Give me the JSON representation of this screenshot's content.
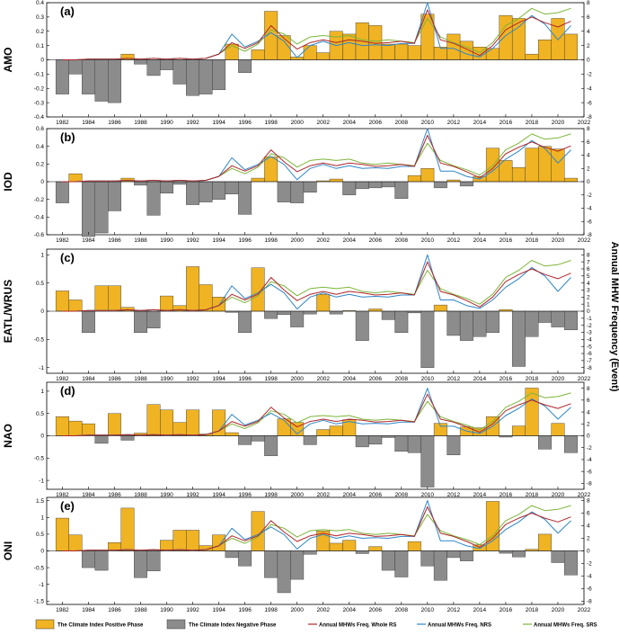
{
  "right_axis_label": "Annual MHW Frequency (Event)",
  "legend": [
    {
      "label": "The Climate Index Positive Phase",
      "kind": "bar",
      "color": "#F0B323"
    },
    {
      "label": "The Climate Index Negative Phase",
      "kind": "bar",
      "color": "#8C8C8C"
    },
    {
      "label": "Annual MHWs Freq. Whole RS",
      "kind": "line",
      "color": "#B0262B"
    },
    {
      "label": "Annual MHWs Freq. NRS",
      "kind": "line",
      "color": "#2E86C8"
    },
    {
      "label": "Annual MHWs Freq. SRS",
      "kind": "line",
      "color": "#7DB53A"
    }
  ],
  "colors": {
    "positive": "#F0B323",
    "negative": "#8C8C8C",
    "whole": "#B0262B",
    "nrs": "#2E86C8",
    "srs": "#7DB53A"
  },
  "chart_data": [
    {
      "type": "bar",
      "panel_label": "(a)",
      "ylabel": "AMO",
      "x": [
        1982,
        1983,
        1984,
        1985,
        1986,
        1987,
        1988,
        1989,
        1990,
        1991,
        1992,
        1993,
        1994,
        1995,
        1996,
        1997,
        1998,
        1999,
        2000,
        2001,
        2002,
        2003,
        2004,
        2005,
        2006,
        2007,
        2008,
        2009,
        2010,
        2011,
        2012,
        2013,
        2014,
        2015,
        2016,
        2017,
        2018,
        2019,
        2020,
        2021
      ],
      "values": [
        -0.24,
        -0.1,
        -0.24,
        -0.29,
        -0.3,
        0.04,
        -0.03,
        -0.11,
        -0.07,
        -0.17,
        -0.25,
        -0.24,
        -0.21,
        0.11,
        -0.09,
        0.07,
        0.34,
        0.17,
        0.02,
        0.1,
        0.05,
        0.2,
        0.18,
        0.26,
        0.24,
        0.11,
        0.11,
        0.1,
        0.32,
        0.09,
        0.18,
        0.13,
        0.09,
        0.08,
        0.31,
        0.29,
        0.04,
        0.14,
        0.29,
        0.18
      ],
      "ylim": [
        -0.4,
        0.4
      ],
      "yticks": [
        "0.4",
        "0.3",
        "0.2",
        "0.1",
        "0",
        "-0.1",
        "-0.2",
        "-0.3",
        "-0.4"
      ],
      "yticks_right": [
        "8",
        "6",
        "4",
        "2",
        "0",
        "-2",
        "-4",
        "-6",
        "-8"
      ],
      "ylim_right": [
        -8,
        8
      ],
      "line_whole": [
        0,
        0,
        0.1,
        0.1,
        0.1,
        0.2,
        0.1,
        0.2,
        0.1,
        0.2,
        0.1,
        0.2,
        0.8,
        2.4,
        1.6,
        2.4,
        4.8,
        3.0,
        1.5,
        2.4,
        2.8,
        2.4,
        2.8,
        2.6,
        2.3,
        2.4,
        2.6,
        2.3,
        7.0,
        2.8,
        2.3,
        1.5,
        0.6,
        2.0,
        4.2,
        5.2,
        6.0,
        5.2,
        4.6,
        5.4
      ],
      "line_nrs": [
        0,
        0,
        0.1,
        0.1,
        0.1,
        0.2,
        0.1,
        0.2,
        0.1,
        0.2,
        0.1,
        0.2,
        0.8,
        3.6,
        1.8,
        2.6,
        3.8,
        2.6,
        0.3,
        2.0,
        2.6,
        2.0,
        2.4,
        2.0,
        2.1,
        2.0,
        2.3,
        2.3,
        8.0,
        1.6,
        1.6,
        0.8,
        0.4,
        1.6,
        3.4,
        4.6,
        6.2,
        5.0,
        2.8,
        4.8
      ],
      "line_srs": [
        0,
        0,
        0.1,
        0.1,
        0.1,
        0.2,
        0.1,
        0.2,
        0.1,
        0.2,
        0.1,
        0.2,
        0.8,
        2.0,
        1.2,
        2.2,
        4.2,
        3.6,
        2.2,
        3.2,
        3.4,
        3.2,
        3.4,
        2.8,
        2.6,
        2.8,
        2.6,
        2.4,
        5.8,
        3.2,
        2.4,
        1.8,
        1.0,
        2.4,
        4.8,
        5.8,
        7.2,
        6.4,
        6.6,
        7.2
      ]
    },
    {
      "type": "bar",
      "panel_label": "(b)",
      "ylabel": "IOD",
      "x": [
        1982,
        1983,
        1984,
        1985,
        1986,
        1987,
        1988,
        1989,
        1990,
        1991,
        1992,
        1993,
        1994,
        1995,
        1996,
        1997,
        1998,
        1999,
        2000,
        2001,
        2002,
        2003,
        2004,
        2005,
        2006,
        2007,
        2008,
        2009,
        2010,
        2011,
        2012,
        2013,
        2014,
        2015,
        2016,
        2017,
        2018,
        2019,
        2020,
        2021
      ],
      "values": [
        -0.24,
        0.09,
        -0.62,
        -0.58,
        -0.33,
        0.04,
        -0.04,
        -0.38,
        -0.13,
        -0.03,
        -0.26,
        -0.23,
        -0.2,
        -0.14,
        -0.37,
        0.04,
        0.28,
        -0.23,
        -0.24,
        -0.12,
        0.01,
        0.03,
        -0.15,
        -0.08,
        -0.07,
        -0.06,
        -0.19,
        0.07,
        0.15,
        -0.07,
        0.02,
        -0.05,
        0.06,
        0.38,
        0.24,
        0.16,
        0.38,
        0.4,
        0.37,
        0.04
      ],
      "ylim": [
        -0.6,
        0.6
      ],
      "yticks": [
        "0.6",
        "0.4",
        "0.2",
        "0",
        "-0.2",
        "-0.4",
        "-0.6"
      ],
      "yticks_right": [
        "8",
        "6",
        "4",
        "2",
        "0",
        "-2",
        "-4",
        "-6",
        "-8"
      ],
      "ylim_right": [
        -8,
        8
      ],
      "line_whole": [
        0,
        0,
        0.1,
        0.1,
        0.1,
        0.2,
        0.1,
        0.2,
        0.1,
        0.2,
        0.1,
        0.2,
        0.8,
        2.4,
        1.6,
        2.4,
        4.8,
        3.0,
        1.5,
        2.4,
        2.8,
        2.4,
        2.8,
        2.6,
        2.3,
        2.4,
        2.6,
        2.3,
        7.0,
        2.8,
        2.3,
        1.5,
        0.6,
        2.0,
        4.2,
        5.2,
        6.0,
        5.2,
        4.6,
        5.4
      ],
      "line_nrs": [
        0,
        0,
        0.1,
        0.1,
        0.1,
        0.2,
        0.1,
        0.2,
        0.1,
        0.2,
        0.1,
        0.2,
        0.8,
        3.6,
        1.8,
        2.6,
        3.8,
        2.6,
        0.3,
        2.0,
        2.6,
        2.0,
        2.4,
        2.0,
        2.1,
        2.0,
        2.3,
        2.3,
        8.0,
        1.6,
        1.6,
        0.8,
        0.4,
        1.6,
        3.4,
        4.6,
        6.2,
        5.0,
        2.8,
        4.8
      ],
      "line_srs": [
        0,
        0,
        0.1,
        0.1,
        0.1,
        0.2,
        0.1,
        0.2,
        0.1,
        0.2,
        0.1,
        0.2,
        0.8,
        2.0,
        1.2,
        2.2,
        4.2,
        3.6,
        2.2,
        3.2,
        3.4,
        3.2,
        3.4,
        2.8,
        2.6,
        2.8,
        2.6,
        2.4,
        5.8,
        3.2,
        2.4,
        1.8,
        1.0,
        2.4,
        4.8,
        5.8,
        7.2,
        6.4,
        6.6,
        7.2
      ]
    },
    {
      "type": "bar",
      "panel_label": "(c)",
      "ylabel": "EATL/WRUS",
      "x": [
        1982,
        1983,
        1984,
        1985,
        1986,
        1987,
        1988,
        1989,
        1990,
        1991,
        1992,
        1993,
        1994,
        1995,
        1996,
        1997,
        1998,
        1999,
        2000,
        2001,
        2002,
        2003,
        2004,
        2005,
        2006,
        2007,
        2008,
        2009,
        2010,
        2011,
        2012,
        2013,
        2014,
        2015,
        2016,
        2017,
        2018,
        2019,
        2020,
        2021
      ],
      "values": [
        0.36,
        0.2,
        -0.38,
        0.45,
        0.45,
        0.07,
        -0.38,
        -0.3,
        0.27,
        0.1,
        0.79,
        0.47,
        0.25,
        -0.02,
        -0.38,
        0.77,
        -0.13,
        -0.06,
        -0.28,
        -0.05,
        0.3,
        -0.05,
        0.01,
        -0.52,
        0.04,
        -0.15,
        -0.38,
        -0.03,
        -1.0,
        0.11,
        -0.43,
        -0.52,
        -0.45,
        -0.38,
        0.03,
        -0.98,
        -0.45,
        -0.2,
        -0.28,
        -0.33
      ],
      "ylim": [
        -1.1,
        1.1
      ],
      "yticks": [
        "1",
        "0.5",
        "0",
        "-0.5",
        "-1"
      ],
      "ytick_values": [
        1,
        0.5,
        0,
        -0.5,
        -1
      ],
      "yticks_right": [
        "8",
        "7",
        "6",
        "5",
        "4",
        "3",
        "2",
        "1",
        "0",
        "-1",
        "-2",
        "-3",
        "-4",
        "-5",
        "-6",
        "-7",
        "-8"
      ],
      "ylim_right": [
        -8.8,
        8.8
      ],
      "line_whole": [
        0,
        0,
        0.1,
        0.1,
        0.1,
        0.2,
        0.1,
        0.2,
        0.1,
        0.2,
        0.1,
        0.2,
        0.8,
        2.4,
        1.6,
        2.4,
        4.8,
        3.0,
        1.5,
        2.4,
        2.8,
        2.4,
        2.8,
        2.6,
        2.3,
        2.4,
        2.6,
        2.3,
        7.0,
        2.8,
        2.3,
        1.5,
        0.6,
        2.0,
        4.2,
        5.2,
        6.0,
        5.2,
        4.6,
        5.4
      ],
      "line_nrs": [
        0,
        0,
        0.1,
        0.1,
        0.1,
        0.2,
        0.1,
        0.2,
        0.1,
        0.2,
        0.1,
        0.2,
        0.8,
        3.6,
        1.8,
        2.6,
        3.8,
        2.6,
        0.3,
        2.0,
        2.6,
        2.0,
        2.4,
        2.0,
        2.1,
        2.0,
        2.3,
        2.3,
        8.0,
        1.6,
        1.6,
        0.8,
        0.4,
        1.6,
        3.4,
        4.6,
        6.2,
        5.0,
        2.8,
        4.8
      ],
      "line_srs": [
        0,
        0,
        0.1,
        0.1,
        0.1,
        0.2,
        0.1,
        0.2,
        0.1,
        0.2,
        0.1,
        0.2,
        0.8,
        2.0,
        1.2,
        2.2,
        4.2,
        3.6,
        2.2,
        3.2,
        3.4,
        3.2,
        3.4,
        2.8,
        2.6,
        2.8,
        2.6,
        2.4,
        5.8,
        3.2,
        2.4,
        1.8,
        1.0,
        2.4,
        4.8,
        5.8,
        7.2,
        6.4,
        6.6,
        7.2
      ]
    },
    {
      "type": "bar",
      "panel_label": "(d)",
      "ylabel": "NAO",
      "x": [
        1982,
        1983,
        1984,
        1985,
        1986,
        1987,
        1988,
        1989,
        1990,
        1991,
        1992,
        1993,
        1994,
        1995,
        1996,
        1997,
        1998,
        1999,
        2000,
        2001,
        2002,
        2003,
        2004,
        2005,
        2006,
        2007,
        2008,
        2009,
        2010,
        2011,
        2012,
        2013,
        2014,
        2015,
        2016,
        2017,
        2018,
        2019,
        2020,
        2021
      ],
      "values": [
        0.43,
        0.33,
        0.27,
        -0.17,
        0.5,
        -0.1,
        0.06,
        0.7,
        0.58,
        0.3,
        0.58,
        0.04,
        0.58,
        0.07,
        -0.2,
        -0.12,
        -0.45,
        0.38,
        0.3,
        -0.2,
        0.14,
        0.22,
        0.36,
        -0.25,
        -0.19,
        -0.04,
        -0.35,
        -0.38,
        -1.15,
        0.28,
        -0.43,
        0.2,
        0.18,
        0.43,
        -0.03,
        0.22,
        1.07,
        -0.3,
        0.28,
        -0.38
      ],
      "ylim": [
        -1.2,
        1.2
      ],
      "yticks": [
        "1",
        "0.5",
        "0",
        "-0.5",
        "-1"
      ],
      "ytick_values": [
        1,
        0.5,
        0,
        -0.5,
        -1
      ],
      "yticks_right": [
        "8",
        "6",
        "4",
        "2",
        "0",
        "-2",
        "-4",
        "-6",
        "-8"
      ],
      "ylim_right": [
        -9,
        9
      ],
      "line_whole": [
        0,
        0,
        0.1,
        0.1,
        0.1,
        0.2,
        0.1,
        0.2,
        0.1,
        0.2,
        0.1,
        0.2,
        0.8,
        2.4,
        1.6,
        2.4,
        4.8,
        3.0,
        1.5,
        2.4,
        2.8,
        2.4,
        2.8,
        2.6,
        2.3,
        2.4,
        2.6,
        2.3,
        7.0,
        2.8,
        2.3,
        1.5,
        0.6,
        2.0,
        4.2,
        5.2,
        6.0,
        5.2,
        4.6,
        5.4
      ],
      "line_nrs": [
        0,
        0,
        0.1,
        0.1,
        0.1,
        0.2,
        0.1,
        0.2,
        0.1,
        0.2,
        0.1,
        0.2,
        0.8,
        3.6,
        1.8,
        2.6,
        3.8,
        2.6,
        0.3,
        2.0,
        2.6,
        2.0,
        2.4,
        2.0,
        2.1,
        2.0,
        2.3,
        2.3,
        8.0,
        1.6,
        1.6,
        0.8,
        0.4,
        1.6,
        3.4,
        4.6,
        6.2,
        5.0,
        2.8,
        4.8
      ],
      "line_srs": [
        0,
        0,
        0.1,
        0.1,
        0.1,
        0.2,
        0.1,
        0.2,
        0.1,
        0.2,
        0.1,
        0.2,
        0.8,
        2.0,
        1.2,
        2.2,
        4.2,
        3.6,
        2.2,
        3.2,
        3.4,
        3.2,
        3.4,
        2.8,
        2.6,
        2.8,
        2.6,
        2.4,
        5.8,
        3.2,
        2.4,
        1.8,
        1.0,
        2.4,
        4.8,
        5.8,
        7.2,
        6.4,
        6.6,
        7.2
      ]
    },
    {
      "type": "bar",
      "panel_label": "(e)",
      "ylabel": "ONI",
      "x": [
        1982,
        1983,
        1984,
        1985,
        1986,
        1987,
        1988,
        1989,
        1990,
        1991,
        1992,
        1993,
        1994,
        1995,
        1996,
        1997,
        1998,
        1999,
        2000,
        2001,
        2002,
        2003,
        2004,
        2005,
        2006,
        2007,
        2008,
        2009,
        2010,
        2011,
        2012,
        2013,
        2014,
        2015,
        2016,
        2017,
        2018,
        2019,
        2020,
        2021
      ],
      "values": [
        0.98,
        0.48,
        -0.5,
        -0.58,
        0.25,
        1.28,
        -0.8,
        -0.6,
        0.32,
        0.62,
        0.62,
        0.16,
        0.48,
        -0.2,
        -0.45,
        1.18,
        -0.8,
        -1.25,
        -0.85,
        -0.1,
        0.6,
        0.23,
        0.32,
        -0.08,
        0.13,
        -0.58,
        -0.78,
        0.28,
        -0.45,
        -0.88,
        -0.2,
        -0.3,
        0.18,
        1.48,
        -0.07,
        -0.18,
        0.05,
        0.5,
        -0.35,
        -0.72
      ],
      "ylim": [
        -1.6,
        1.6
      ],
      "yticks": [
        "1.5",
        "1",
        "0.5",
        "0",
        "-0.5",
        "-1",
        "-1.5"
      ],
      "ytick_values": [
        1.5,
        1,
        0.5,
        0,
        -0.5,
        -1,
        -1.5
      ],
      "yticks_right": [
        "8",
        "6",
        "4",
        "2",
        "0",
        "-2",
        "-4",
        "-6",
        "-8"
      ],
      "ylim_right": [
        -8.5,
        8.5
      ],
      "line_whole": [
        0,
        0,
        0.1,
        0.1,
        0.1,
        0.2,
        0.1,
        0.2,
        0.1,
        0.2,
        0.1,
        0.2,
        0.8,
        2.4,
        1.6,
        2.4,
        4.8,
        3.0,
        1.5,
        2.4,
        2.8,
        2.4,
        2.8,
        2.6,
        2.3,
        2.4,
        2.6,
        2.3,
        7.0,
        2.8,
        2.3,
        1.5,
        0.6,
        2.0,
        4.2,
        5.2,
        6.0,
        5.2,
        4.6,
        5.4
      ],
      "line_nrs": [
        0,
        0,
        0.1,
        0.1,
        0.1,
        0.2,
        0.1,
        0.2,
        0.1,
        0.2,
        0.1,
        0.2,
        0.8,
        3.6,
        1.8,
        2.6,
        3.8,
        2.6,
        0.3,
        2.0,
        2.6,
        2.0,
        2.4,
        2.0,
        2.1,
        2.0,
        2.3,
        2.3,
        8.0,
        1.6,
        1.6,
        0.8,
        0.4,
        1.6,
        3.4,
        4.6,
        6.2,
        5.0,
        2.8,
        4.8
      ],
      "line_srs": [
        0,
        0,
        0.1,
        0.1,
        0.1,
        0.2,
        0.1,
        0.2,
        0.1,
        0.2,
        0.1,
        0.2,
        0.8,
        2.0,
        1.2,
        2.2,
        4.2,
        3.6,
        2.2,
        3.2,
        3.4,
        3.2,
        3.4,
        2.8,
        2.6,
        2.8,
        2.6,
        2.4,
        5.8,
        3.2,
        2.4,
        1.8,
        1.0,
        2.4,
        4.8,
        5.8,
        7.2,
        6.4,
        6.6,
        7.2
      ]
    }
  ],
  "x_tick_labels": [
    "1982",
    "1984",
    "1986",
    "1988",
    "1990",
    "1992",
    "1994",
    "1996",
    "1998",
    "2000",
    "2002",
    "2004",
    "2006",
    "2008",
    "2010",
    "2012",
    "2014",
    "2016",
    "2018",
    "2020",
    "2022"
  ]
}
